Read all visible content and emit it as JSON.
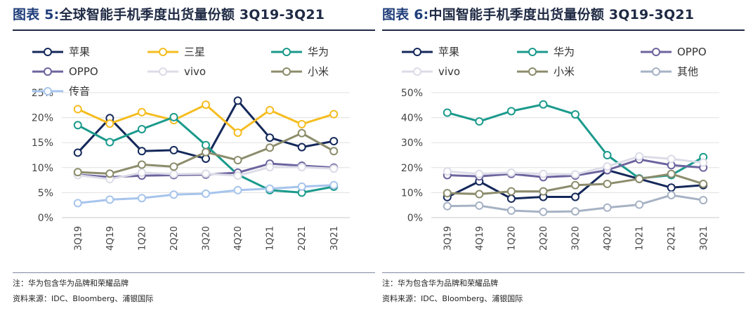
{
  "charts": [
    {
      "figure_label": "图表 5:",
      "title": "全球智能手机季度出货量份额 3Q19-3Q21",
      "note": "注：华为包含华为品牌和荣耀品牌",
      "source": "资料来源：IDC、Bloomberg、浦银国际"
    },
    {
      "figure_label": "图表 6:",
      "title": "中国智能手机季度出货量份额 3Q19-3Q21",
      "note": "注：华为包含华为品牌和荣耀品牌",
      "source": "资料来源：IDC、Bloomberg、浦银国际"
    }
  ],
  "chart_data": [
    {
      "type": "line",
      "title": "全球智能手机季度出货量份额 3Q19-3Q21",
      "xlabel": "",
      "ylabel": "",
      "categories": [
        "3Q19",
        "4Q19",
        "1Q20",
        "2Q20",
        "3Q20",
        "4Q20",
        "1Q21",
        "2Q21",
        "3Q21"
      ],
      "ylim": [
        0,
        25
      ],
      "yticks": [
        "0%",
        "5%",
        "10%",
        "15%",
        "20%",
        "25%"
      ],
      "tick_values": [
        0,
        5,
        10,
        15,
        20,
        25
      ],
      "grid": true,
      "legend_position": "top",
      "series": [
        {
          "name": "苹果",
          "color": "#14285a",
          "values": [
            13.0,
            19.9,
            13.3,
            13.5,
            11.8,
            23.4,
            16.0,
            14.1,
            15.3
          ]
        },
        {
          "name": "三星",
          "color": "#f5bd20",
          "values": [
            21.7,
            18.8,
            21.1,
            19.5,
            22.6,
            17.0,
            21.5,
            18.7,
            20.7
          ]
        },
        {
          "name": "华为",
          "color": "#1a9a8c",
          "values": [
            18.5,
            15.1,
            17.7,
            20.1,
            14.5,
            8.6,
            5.5,
            5.0,
            6.2
          ]
        },
        {
          "name": "OPPO",
          "color": "#6c649e",
          "values": [
            8.6,
            8.1,
            8.4,
            8.5,
            8.6,
            9.0,
            10.8,
            10.4,
            10.0
          ]
        },
        {
          "name": "vivo",
          "color": "#dcdce8",
          "values": [
            8.5,
            7.7,
            9.0,
            8.7,
            8.8,
            8.4,
            10.1,
            10.1,
            9.8
          ]
        },
        {
          "name": "小米",
          "color": "#8c8c6c",
          "values": [
            9.1,
            8.8,
            10.6,
            10.2,
            13.1,
            11.5,
            14.0,
            16.9,
            13.3
          ]
        },
        {
          "name": "传音",
          "color": "#a6c4ec",
          "values": [
            2.9,
            3.6,
            3.9,
            4.6,
            4.8,
            5.5,
            5.8,
            6.2,
            6.5
          ]
        }
      ]
    },
    {
      "type": "line",
      "title": "中国智能手机季度出货量份额 3Q19-3Q21",
      "xlabel": "",
      "ylabel": "",
      "categories": [
        "3Q19",
        "4Q19",
        "1Q20",
        "2Q20",
        "3Q20",
        "4Q20",
        "1Q21",
        "2Q21",
        "3Q21"
      ],
      "ylim": [
        0,
        50
      ],
      "yticks": [
        "0%",
        "10%",
        "20%",
        "30%",
        "40%",
        "50%"
      ],
      "tick_values": [
        0,
        10,
        20,
        30,
        40,
        50
      ],
      "grid": true,
      "legend_position": "top",
      "series": [
        {
          "name": "苹果",
          "color": "#14285a",
          "values": [
            8.2,
            14.5,
            7.6,
            8.3,
            8.3,
            19.0,
            15.5,
            12.0,
            13.0
          ]
        },
        {
          "name": "华为",
          "color": "#1a9a8c",
          "values": [
            42.0,
            38.5,
            42.6,
            45.3,
            41.3,
            25.0,
            15.7,
            17.0,
            24.2
          ]
        },
        {
          "name": "OPPO",
          "color": "#6c649e",
          "values": [
            17.0,
            16.5,
            17.5,
            16.2,
            16.8,
            19.0,
            23.3,
            21.0,
            20.0
          ]
        },
        {
          "name": "vivo",
          "color": "#dcdce8",
          "values": [
            18.5,
            17.5,
            18.0,
            17.5,
            17.3,
            20.5,
            24.5,
            23.5,
            22.0
          ]
        },
        {
          "name": "小米",
          "color": "#8c8c6c",
          "values": [
            9.8,
            9.4,
            10.5,
            10.5,
            13.0,
            13.5,
            15.5,
            17.5,
            13.5
          ]
        },
        {
          "name": "其他",
          "color": "#a6b2c4",
          "values": [
            4.6,
            4.8,
            2.8,
            2.3,
            2.5,
            4.0,
            5.2,
            9.0,
            7.0
          ]
        }
      ]
    }
  ]
}
